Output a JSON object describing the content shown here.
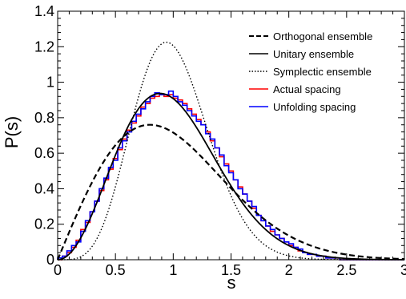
{
  "chart_data": {
    "type": "line",
    "title": "",
    "xlabel": "s",
    "ylabel": "P(s)",
    "xlim": [
      0,
      3
    ],
    "ylim": [
      0,
      1.4
    ],
    "grid": false,
    "legend_position": "top-right",
    "x_ticks": [
      {
        "value": 0,
        "label": "0"
      },
      {
        "value": 0.5,
        "label": "0.5"
      },
      {
        "value": 1,
        "label": "1"
      },
      {
        "value": 1.5,
        "label": "1.5"
      },
      {
        "value": 2,
        "label": "2"
      },
      {
        "value": 2.5,
        "label": "2.5"
      },
      {
        "value": 3,
        "label": "3"
      }
    ],
    "y_ticks": [
      {
        "value": 0,
        "label": "0"
      },
      {
        "value": 0.2,
        "label": "0.2"
      },
      {
        "value": 0.4,
        "label": "0.4"
      },
      {
        "value": 0.6,
        "label": "0.6"
      },
      {
        "value": 0.8,
        "label": "0.8"
      },
      {
        "value": 1,
        "label": "1"
      },
      {
        "value": 1.2,
        "label": "1.2"
      },
      {
        "value": 1.4,
        "label": "1.4"
      }
    ],
    "series": [
      {
        "name": "Orthogonal ensemble",
        "style": "dashed",
        "color": "#000000",
        "formula": "(pi/2) s exp(-pi s^2/4)"
      },
      {
        "name": "Unitary ensemble",
        "style": "solid",
        "color": "#000000",
        "formula": "(32/pi^2) s^2 exp(-4 s^2/pi)"
      },
      {
        "name": "Symplectic ensemble",
        "style": "dotted",
        "color": "#000000",
        "formula": "(2^18/(3^6 pi^3)) s^4 exp(-64 s^2/(9 pi))"
      },
      {
        "name": "Actual spacing",
        "style": "histogram",
        "color": "#ff0000"
      },
      {
        "name": "Unfolding spacing",
        "style": "histogram",
        "color": "#0000ff"
      }
    ],
    "histogram": {
      "bin_width": 0.04,
      "x_start": 0,
      "actual_spacing": [
        0.0,
        0.02,
        0.04,
        0.07,
        0.11,
        0.17,
        0.21,
        0.27,
        0.33,
        0.39,
        0.45,
        0.51,
        0.57,
        0.62,
        0.68,
        0.73,
        0.77,
        0.81,
        0.86,
        0.88,
        0.91,
        0.92,
        0.93,
        0.92,
        0.93,
        0.91,
        0.9,
        0.88,
        0.85,
        0.82,
        0.79,
        0.76,
        0.72,
        0.67,
        0.63,
        0.58,
        0.54,
        0.5,
        0.45,
        0.41,
        0.37,
        0.33,
        0.29,
        0.25,
        0.22,
        0.19,
        0.16,
        0.14,
        0.12,
        0.1,
        0.08,
        0.07,
        0.05,
        0.04,
        0.03,
        0.03,
        0.02,
        0.02,
        0.01,
        0.01,
        0.01,
        0.0,
        0.0,
        0.0,
        0.0,
        0.0,
        0.0,
        0.0,
        0.0,
        0.0,
        0.0,
        0.0,
        0.0,
        0.0,
        0.0
      ],
      "unfolding_spacing": [
        0.01,
        0.02,
        0.05,
        0.08,
        0.1,
        0.16,
        0.22,
        0.27,
        0.33,
        0.4,
        0.46,
        0.52,
        0.56,
        0.63,
        0.67,
        0.72,
        0.78,
        0.82,
        0.85,
        0.89,
        0.92,
        0.94,
        0.93,
        0.93,
        0.95,
        0.92,
        0.89,
        0.87,
        0.84,
        0.81,
        0.78,
        0.76,
        0.71,
        0.68,
        0.63,
        0.59,
        0.53,
        0.49,
        0.45,
        0.4,
        0.37,
        0.33,
        0.3,
        0.25,
        0.22,
        0.19,
        0.17,
        0.14,
        0.12,
        0.1,
        0.09,
        0.07,
        0.06,
        0.04,
        0.03,
        0.03,
        0.02,
        0.02,
        0.01,
        0.01,
        0.01,
        0.0,
        0.0,
        0.0,
        0.0,
        0.0,
        0.0,
        0.0,
        0.0,
        0.0,
        0.0,
        0.0,
        0.0,
        0.0,
        0.0
      ]
    }
  }
}
